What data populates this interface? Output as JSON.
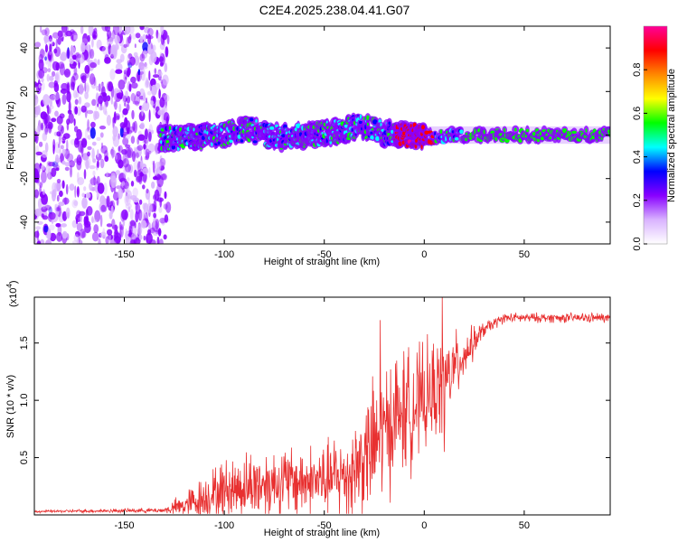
{
  "title": "C2E4.2025.238.04.41.G07",
  "chart_data": [
    {
      "type": "heatmap",
      "xlabel": "Height of straight line (km)",
      "ylabel": "Frequency (Hz)",
      "xlim": [
        -195,
        93
      ],
      "ylim": [
        -50,
        50
      ],
      "xticks": [
        -150,
        -100,
        -50,
        0,
        50
      ],
      "xtick_labels": [
        "-150",
        "-100",
        "-50",
        "0",
        "50"
      ],
      "yticks": [
        -40,
        -20,
        0,
        20,
        40
      ],
      "ytick_labels": [
        "-40",
        "-20",
        "0",
        "20",
        "40"
      ],
      "colorbar": {
        "label": "Normalized spectral amplitude",
        "range": [
          0,
          1
        ],
        "ticks": [
          0,
          0.2,
          0.4,
          0.6,
          0.8
        ],
        "tick_labels": [
          "0.0",
          "0.2",
          "0.4",
          "0.6",
          "0.8"
        ],
        "colors": [
          "#ffffff",
          "#d9b3ff",
          "#8800ff",
          "#0000ff",
          "#00ffff",
          "#00ff00",
          "#ffff00",
          "#ff8800",
          "#ff0000",
          "#ff0099"
        ]
      },
      "features": {
        "noise_region_x": [
          -195,
          -128
        ],
        "scatter_region_x": [
          -145,
          -120
        ],
        "band_x": [
          -132,
          93
        ],
        "ridge_center": [
          {
            "x": -132,
            "y": -2
          },
          {
            "x": -120,
            "y": -1
          },
          {
            "x": -100,
            "y": 0
          },
          {
            "x": -88,
            "y": 3
          },
          {
            "x": -80,
            "y": 0
          },
          {
            "x": -70,
            "y": -1
          },
          {
            "x": -55,
            "y": 0
          },
          {
            "x": -42,
            "y": 2
          },
          {
            "x": -32,
            "y": 4
          },
          {
            "x": -20,
            "y": 1
          },
          {
            "x": -8,
            "y": 0
          },
          {
            "x": 5,
            "y": -1
          },
          {
            "x": 20,
            "y": 0
          },
          {
            "x": 93,
            "y": 0
          }
        ],
        "hot_segment_x": [
          -15,
          5
        ]
      }
    },
    {
      "type": "line",
      "xlabel": "Height of straight line (km)",
      "ylabel": "SNR (10 * v/v)",
      "y_multiplier": "(x10",
      "y_exponent": "4",
      "y_multiplier_close": ")",
      "xlim": [
        -195,
        93
      ],
      "ylim": [
        0,
        1.9
      ],
      "xticks": [
        -150,
        -100,
        -50,
        0,
        50
      ],
      "xtick_labels": [
        "-150",
        "-100",
        "-50",
        "0",
        "50"
      ],
      "yticks": [
        0.5,
        1.0,
        1.5
      ],
      "ytick_labels": [
        "0.5",
        "1.0",
        "1.5"
      ],
      "line_color": "#e83030",
      "envelope": [
        {
          "x": -195,
          "base": 0.03,
          "amp": 0.01
        },
        {
          "x": -130,
          "base": 0.04,
          "amp": 0.02
        },
        {
          "x": -120,
          "base": 0.08,
          "amp": 0.12
        },
        {
          "x": -100,
          "base": 0.22,
          "amp": 0.25
        },
        {
          "x": -80,
          "base": 0.28,
          "amp": 0.3
        },
        {
          "x": -50,
          "base": 0.3,
          "amp": 0.3
        },
        {
          "x": -38,
          "base": 0.35,
          "amp": 0.4
        },
        {
          "x": -25,
          "base": 0.6,
          "amp": 0.55
        },
        {
          "x": -15,
          "base": 0.85,
          "amp": 0.55
        },
        {
          "x": 0,
          "base": 1.0,
          "amp": 0.45
        },
        {
          "x": 10,
          "base": 1.15,
          "amp": 0.4
        },
        {
          "x": 20,
          "base": 1.4,
          "amp": 0.2
        },
        {
          "x": 30,
          "base": 1.62,
          "amp": 0.06
        },
        {
          "x": 40,
          "base": 1.72,
          "amp": 0.04
        },
        {
          "x": 93,
          "base": 1.72,
          "amp": 0.04
        }
      ],
      "peaks": [
        {
          "x": -22,
          "y": 1.7
        },
        {
          "x": 9,
          "y": 1.9
        },
        {
          "x": 10,
          "y": 0.55
        }
      ]
    }
  ]
}
